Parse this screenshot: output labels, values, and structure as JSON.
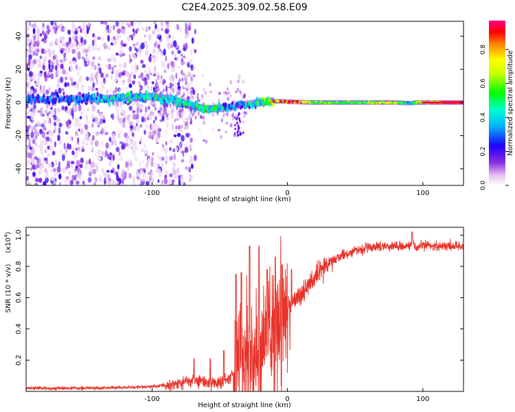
{
  "title": "C2E4.2025.309.02.58.E09",
  "chart_data": [
    {
      "type": "heatmap",
      "title": "",
      "xlabel": "Height of straight line (km)",
      "ylabel": "Frequency (Hz)",
      "xlim": [
        -193,
        130
      ],
      "ylim": [
        -50,
        49
      ],
      "x_ticks": [
        -100,
        0,
        100
      ],
      "y_ticks": [
        -40,
        -20,
        0,
        20,
        40
      ],
      "colorbar": {
        "label": "Normalized spectral amplitude",
        "range": [
          0,
          0.97
        ],
        "ticks": [
          "0.0",
          "0.2",
          "0.4",
          "0.6",
          "0.8"
        ],
        "tick_values": [
          0.0,
          0.2,
          0.4,
          0.6,
          0.8
        ]
      },
      "ridge": {
        "description_points_x_km": [
          -193,
          -150,
          -140,
          -120,
          -100,
          -85,
          -75,
          -60,
          -50,
          -40,
          -35,
          -25,
          -15,
          -5,
          0,
          10,
          20,
          40,
          60,
          80,
          90,
          95,
          130
        ],
        "frequency_hz": [
          1.5,
          2.5,
          2.0,
          3.0,
          3.5,
          2.0,
          -1.0,
          -4.0,
          -3.5,
          -2.5,
          -1.5,
          -0.5,
          0.5,
          0.8,
          0.5,
          0.2,
          0.0,
          0.0,
          0.0,
          0.0,
          -0.5,
          0.0,
          0.0
        ],
        "amplitude": [
          0.25,
          0.3,
          0.35,
          0.4,
          0.42,
          0.38,
          0.45,
          0.5,
          0.4,
          0.3,
          0.25,
          0.35,
          0.55,
          0.7,
          0.85,
          0.8,
          0.6,
          0.55,
          0.6,
          0.7,
          0.3,
          0.6,
          0.97
        ]
      }
    },
    {
      "type": "line",
      "title": "",
      "xlabel": "Height of straight line (km)",
      "ylabel": "SNR (10 * v/v)",
      "y_multiplier": "(x10",
      "y_multiplier_exp": "4",
      "y_multiplier_close": ")",
      "xlim": [
        -193,
        130
      ],
      "ylim": [
        0,
        1.05
      ],
      "x_ticks": [
        -100,
        0,
        100
      ],
      "y_ticks": [
        0.2,
        0.4,
        0.6,
        0.8,
        1.0
      ],
      "y_tick_labels": [
        "0.2",
        "0.4",
        "0.6",
        "0.8",
        "1.0"
      ],
      "series": [
        {
          "name": "SNR",
          "color": "#e8332a",
          "envelope_x_km": [
            -193,
            -150,
            -120,
            -100,
            -80,
            -70,
            -60,
            -50,
            -45,
            -40,
            -35,
            -30,
            -25,
            -20,
            -15,
            -10,
            -5,
            0,
            10,
            20,
            30,
            40,
            50,
            60,
            70,
            80,
            90,
            93,
            95,
            100,
            110,
            120,
            130
          ],
          "envelope_y": [
            0.02,
            0.02,
            0.025,
            0.03,
            0.05,
            0.07,
            0.06,
            0.05,
            0.07,
            0.12,
            0.25,
            0.25,
            0.2,
            0.3,
            0.38,
            0.45,
            0.48,
            0.55,
            0.62,
            0.72,
            0.82,
            0.87,
            0.9,
            0.92,
            0.93,
            0.93,
            0.93,
            0.95,
            0.9,
            0.94,
            0.93,
            0.93,
            0.93
          ],
          "peaks": [
            {
              "x": -69,
              "y": 0.21
            },
            {
              "x": -57,
              "y": 0.21
            },
            {
              "x": -47,
              "y": 0.26
            },
            {
              "x": -38,
              "y": 0.75
            },
            {
              "x": -34,
              "y": 0.76
            },
            {
              "x": -28,
              "y": 0.93
            },
            {
              "x": -21,
              "y": 0.93
            },
            {
              "x": -15,
              "y": 0.78
            },
            {
              "x": -9,
              "y": 0.86
            },
            {
              "x": -4,
              "y": 0.81
            },
            {
              "x": 3,
              "y": 0.78
            },
            {
              "x": 92,
              "y": 1.02
            }
          ]
        }
      ]
    }
  ]
}
